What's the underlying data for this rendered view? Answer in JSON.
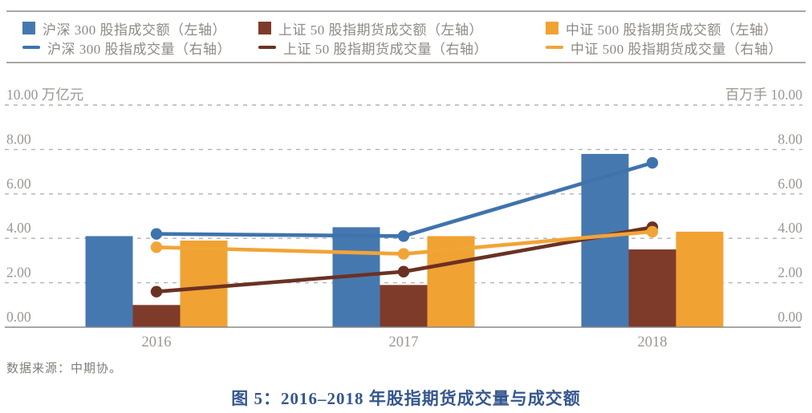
{
  "legend": {
    "items": [
      {
        "label": "沪深 300 股指成交额（左轴）",
        "swatch": "square",
        "color": "#4678b0"
      },
      {
        "label": "沪深 300 股指成交量（右轴）",
        "swatch": "line",
        "color": "#3f73ad"
      },
      {
        "label": "上证 50 股指期货成交额（左轴）",
        "swatch": "square",
        "color": "#7e3b2a"
      },
      {
        "label": "上证 50 股指期货成交量（右轴）",
        "swatch": "line",
        "color": "#6a3123"
      },
      {
        "label": "中证 500 股指期货成交额（左轴）",
        "swatch": "square",
        "color": "#f0a233"
      },
      {
        "label": "中证 500 股指期货成交量（右轴）",
        "swatch": "line",
        "color": "#f2a437"
      }
    ]
  },
  "source_note": "数据来源：中期协。",
  "caption": "图 5：2016–2018 年股指期货成交量与成交额",
  "chart_data": {
    "type": "bar+line",
    "categories": [
      "2016",
      "2017",
      "2018"
    ],
    "left_axis_label": "万亿元",
    "right_axis_label": "百万手",
    "ylim": [
      0,
      10
    ],
    "ytick_step": 2,
    "ytick_format": "0.00",
    "grid": "dashed horizontal",
    "legend_position": "top",
    "bar_series": [
      {
        "name": "沪深300股指成交额（左轴）",
        "axis": "left",
        "color": "#4678b0",
        "values": [
          4.1,
          4.5,
          7.8
        ]
      },
      {
        "name": "上证50股指期货成交额（左轴）",
        "axis": "left",
        "color": "#7e3b2a",
        "values": [
          1.0,
          1.9,
          3.5
        ]
      },
      {
        "name": "中证500股指期货成交额（左轴）",
        "axis": "left",
        "color": "#f0a233",
        "values": [
          3.9,
          4.1,
          4.3
        ]
      }
    ],
    "line_series": [
      {
        "name": "上证50股指期货成交量（右轴）",
        "axis": "right",
        "color": "#6a3123",
        "values": [
          1.6,
          2.5,
          4.5
        ]
      },
      {
        "name": "中证500股指期货成交量（右轴）",
        "axis": "right",
        "color": "#f2a437",
        "values": [
          3.6,
          3.3,
          4.3
        ]
      },
      {
        "name": "沪深300股指成交量（右轴）",
        "axis": "right",
        "color": "#3f73ad",
        "values": [
          4.2,
          4.1,
          7.4
        ]
      }
    ]
  }
}
